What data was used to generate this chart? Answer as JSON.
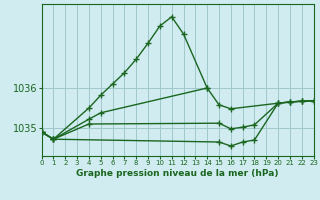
{
  "title": "Graphe pression niveau de la mer (hPa)",
  "bg_color": "#d0ecf0",
  "grid_color": "#a0c8cc",
  "line_color": "#1a6620",
  "x_min": 0,
  "x_max": 23,
  "y_min": 1034.3,
  "y_max": 1038.1,
  "yticks": [
    1035,
    1036
  ],
  "series1_x": [
    0,
    1,
    4,
    5,
    6,
    7,
    8,
    9,
    10,
    11,
    12,
    14
  ],
  "series1_y": [
    1034.9,
    1034.72,
    1035.5,
    1035.82,
    1036.1,
    1036.38,
    1036.72,
    1037.12,
    1037.55,
    1037.78,
    1037.35,
    1036.0
  ],
  "series2_x": [
    0,
    1,
    4,
    5,
    14,
    15,
    16,
    20,
    21,
    22,
    23
  ],
  "series2_y": [
    1034.9,
    1034.72,
    1035.22,
    1035.38,
    1036.0,
    1035.58,
    1035.48,
    1035.62,
    1035.65,
    1035.67,
    1035.68
  ],
  "series3_x": [
    0,
    1,
    4,
    15,
    16,
    17,
    18,
    20,
    21,
    22,
    23
  ],
  "series3_y": [
    1034.9,
    1034.72,
    1035.1,
    1035.12,
    1034.98,
    1035.02,
    1035.08,
    1035.62,
    1035.65,
    1035.67,
    1035.68
  ],
  "series4_x": [
    0,
    1,
    15,
    16,
    17,
    18,
    20,
    21,
    22,
    23
  ],
  "series4_y": [
    1034.9,
    1034.72,
    1034.65,
    1034.55,
    1034.65,
    1034.7,
    1035.62,
    1035.65,
    1035.67,
    1035.68
  ]
}
